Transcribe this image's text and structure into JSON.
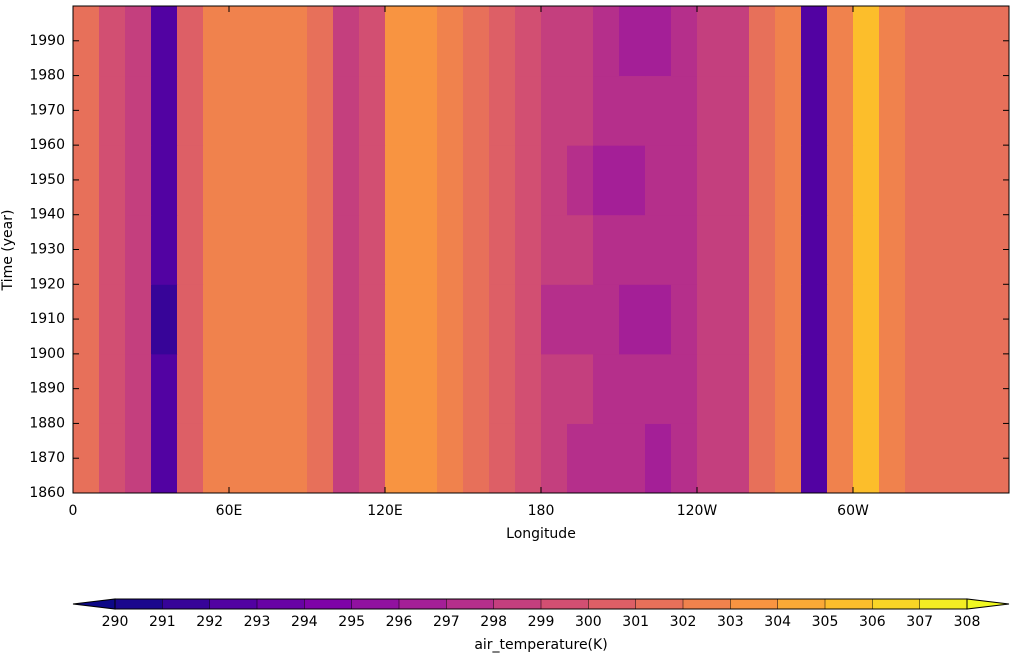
{
  "chart_data": {
    "type": "heatmap",
    "xlabel": "Longitude",
    "ylabel": "Time (year)",
    "xlim": [
      0,
      360
    ],
    "ylim": [
      1860,
      2000
    ],
    "xticks": [
      0,
      {
        "value": 60,
        "label": "60E"
      },
      {
        "value": 120,
        "label": "120E"
      },
      180,
      {
        "value": 240,
        "label": "120W"
      },
      {
        "value": 300,
        "label": "60W"
      }
    ],
    "yticks": [
      1860,
      1870,
      1880,
      1890,
      1900,
      1910,
      1920,
      1930,
      1940,
      1950,
      1960,
      1970,
      1980,
      1990
    ],
    "xbins": [
      0,
      10,
      20,
      30,
      40,
      50,
      60,
      70,
      80,
      90,
      100,
      110,
      120,
      130,
      140,
      150,
      160,
      170,
      180,
      190,
      200,
      210,
      220,
      230,
      240,
      250,
      260,
      270,
      280,
      290,
      300,
      310,
      320,
      330,
      340,
      350,
      360
    ],
    "ybins": [
      1860,
      1880,
      1900,
      1920,
      1940,
      1960,
      1980,
      2000
    ],
    "z": [
      [
        301,
        299,
        298,
        292,
        300,
        302,
        302,
        302,
        302,
        301.5,
        298,
        299,
        303.5,
        303,
        302,
        301,
        300,
        299,
        298,
        297.5,
        297,
        297,
        296.5,
        297,
        298,
        298,
        301,
        302,
        292,
        302,
        305.5,
        302,
        301,
        301,
        301,
        301
      ],
      [
        301,
        299,
        298,
        292,
        300,
        302,
        302,
        302,
        302,
        301.5,
        298,
        299,
        303.5,
        303,
        302,
        301,
        300,
        299,
        298,
        298,
        297,
        297,
        297,
        297.5,
        298,
        298,
        301,
        302,
        292,
        302,
        305.5,
        302,
        301,
        301,
        301,
        301
      ],
      [
        301,
        299,
        298,
        291.5,
        300,
        302,
        302,
        302,
        302,
        301.5,
        298,
        299,
        303.5,
        303,
        302,
        301,
        300,
        299,
        297.5,
        297.5,
        297,
        296.5,
        296.5,
        297,
        298,
        298,
        301,
        302,
        292,
        302,
        305.5,
        302,
        301,
        301,
        301,
        301
      ],
      [
        301,
        299,
        298,
        292,
        300,
        302,
        302,
        302,
        302,
        301.5,
        298,
        299,
        303.5,
        303,
        302,
        301,
        300,
        299,
        298,
        298,
        297,
        297,
        297,
        297,
        298,
        298,
        301,
        302,
        292,
        302,
        305.5,
        302,
        301,
        301,
        301,
        301
      ],
      [
        301,
        299,
        298,
        292,
        300,
        302,
        302,
        302,
        302,
        301.5,
        298,
        299,
        303.5,
        303,
        302,
        301,
        300,
        299,
        298,
        297.5,
        296.5,
        296.5,
        297,
        297,
        298,
        298,
        301,
        302,
        292,
        302,
        305.5,
        302,
        301,
        301,
        301,
        301
      ],
      [
        301,
        299,
        298,
        292,
        300,
        302,
        302,
        302,
        302,
        301.5,
        298,
        299,
        303.5,
        303,
        302,
        301,
        300,
        299,
        298,
        298,
        297,
        297,
        297,
        297,
        298,
        298,
        301,
        302,
        292,
        302,
        305.5,
        302,
        301,
        301,
        301,
        301
      ],
      [
        301,
        299,
        298,
        292,
        300,
        302,
        302,
        302,
        302,
        301.5,
        298,
        299,
        303.5,
        303,
        302,
        301,
        300,
        299,
        298,
        298,
        297,
        296.5,
        296.5,
        297,
        298,
        298,
        301,
        302,
        292,
        302,
        305.5,
        302,
        301,
        301,
        301,
        301
      ]
    ],
    "colormap": "plasma",
    "zlim": [
      290,
      308
    ],
    "colorbar": {
      "label": "air_temperature(K)",
      "ticks": [
        290,
        291,
        292,
        293,
        294,
        295,
        296,
        297,
        298,
        299,
        300,
        301,
        302,
        303,
        304,
        305,
        306,
        307,
        308
      ]
    }
  }
}
